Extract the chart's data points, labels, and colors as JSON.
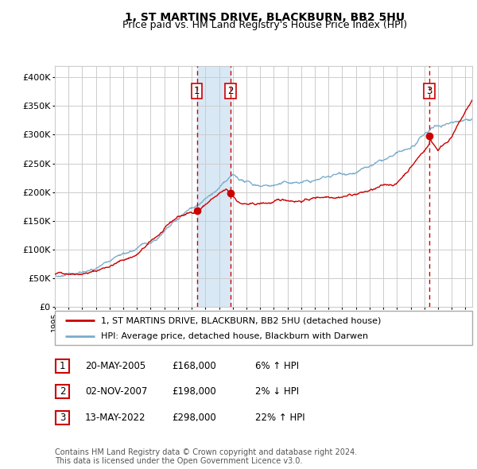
{
  "title": "1, ST MARTINS DRIVE, BLACKBURN, BB2 5HU",
  "subtitle": "Price paid vs. HM Land Registry's House Price Index (HPI)",
  "title_fontsize": 10,
  "subtitle_fontsize": 9,
  "background_color": "#ffffff",
  "grid_color": "#cccccc",
  "ylim": [
    0,
    420000
  ],
  "yticks": [
    0,
    50000,
    100000,
    150000,
    200000,
    250000,
    300000,
    350000,
    400000
  ],
  "ytick_labels": [
    "£0",
    "£50K",
    "£100K",
    "£150K",
    "£200K",
    "£250K",
    "£300K",
    "£350K",
    "£400K"
  ],
  "transactions": [
    {
      "num": 1,
      "date": "20-MAY-2005",
      "price": 168000,
      "hpi_pct": "6%",
      "hpi_dir": "↑",
      "x_year": 2005.38
    },
    {
      "num": 2,
      "date": "02-NOV-2007",
      "price": 198000,
      "hpi_pct": "2%",
      "hpi_dir": "↓",
      "x_year": 2007.84
    },
    {
      "num": 3,
      "date": "13-MAY-2022",
      "price": 298000,
      "hpi_pct": "22%",
      "hpi_dir": "↑",
      "x_year": 2022.37
    }
  ],
  "shaded_region": [
    2005.38,
    2007.84
  ],
  "line1_color": "#cc0000",
  "line2_color": "#7aadcc",
  "marker_color": "#cc0000",
  "legend1_label": "1, ST MARTINS DRIVE, BLACKBURN, BB2 5HU (detached house)",
  "legend2_label": "HPI: Average price, detached house, Blackburn with Darwen",
  "footer": "Contains HM Land Registry data © Crown copyright and database right 2024.\nThis data is licensed under the Open Government Licence v3.0.",
  "dashed_line_color": "#cc0000",
  "label_box_color": "#cc0000",
  "shaded_color": "#d8e8f5",
  "xlim": [
    1995,
    2025.5
  ],
  "xtick_start": 1995,
  "xtick_end": 2026
}
